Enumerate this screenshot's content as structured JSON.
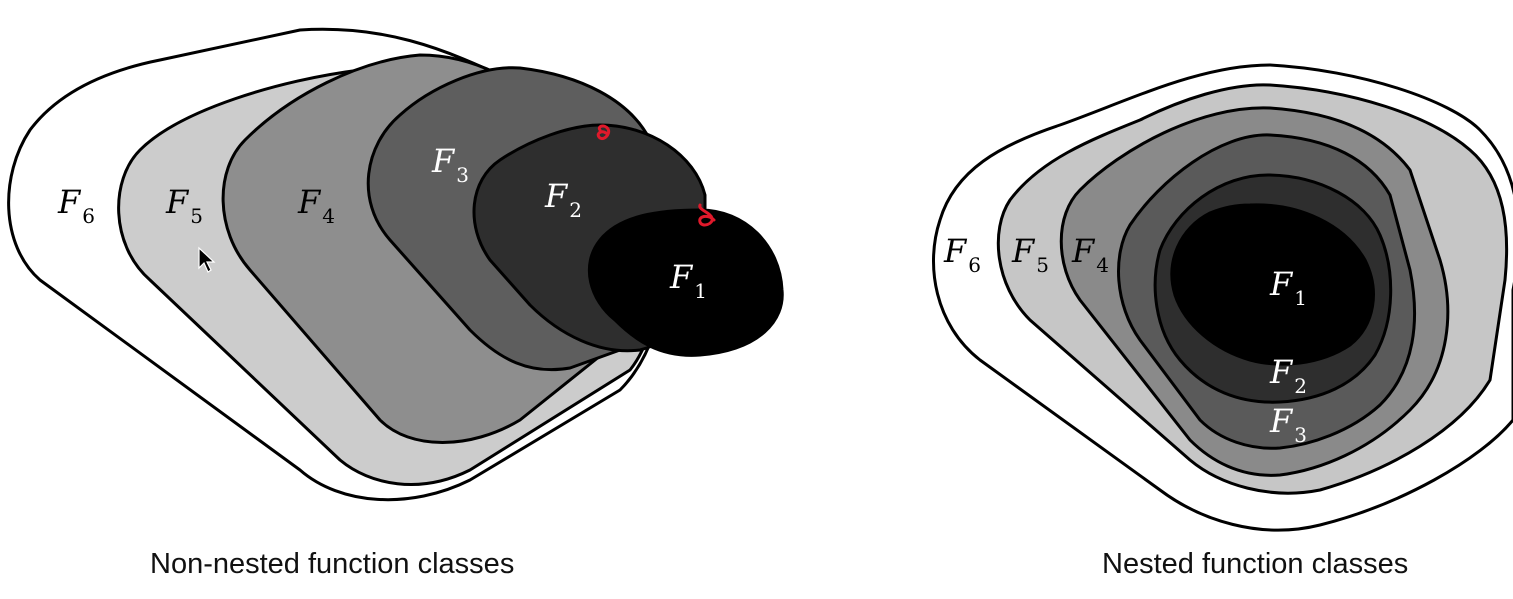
{
  "left_diagram": {
    "caption": "Non-nested function classes",
    "sets": [
      {
        "symbol": "F",
        "sub": "6",
        "fill": "#ffffff",
        "text_color": "#000000"
      },
      {
        "symbol": "F",
        "sub": "5",
        "fill": "#cccccc",
        "text_color": "#000000"
      },
      {
        "symbol": "F",
        "sub": "4",
        "fill": "#8e8e8e",
        "text_color": "#000000"
      },
      {
        "symbol": "F",
        "sub": "3",
        "fill": "#5e5e5e",
        "text_color": "#ffffff"
      },
      {
        "symbol": "F",
        "sub": "2",
        "fill": "#2e2e2e",
        "text_color": "#ffffff"
      },
      {
        "symbol": "F",
        "sub": "1",
        "fill": "#000000",
        "text_color": "#ffffff"
      }
    ]
  },
  "right_diagram": {
    "caption": "Nested function classes",
    "sets": [
      {
        "symbol": "F",
        "sub": "6",
        "fill": "#ffffff",
        "text_color": "#000000"
      },
      {
        "symbol": "F",
        "sub": "5",
        "fill": "#c6c6c6",
        "text_color": "#000000"
      },
      {
        "symbol": "F",
        "sub": "4",
        "fill": "#8a8a8a",
        "text_color": "#000000"
      },
      {
        "symbol": "F",
        "sub": "3",
        "fill": "#5a5a5a",
        "text_color": "#ffffff"
      },
      {
        "symbol": "F",
        "sub": "2",
        "fill": "#2e2e2e",
        "text_color": "#ffffff"
      },
      {
        "symbol": "F",
        "sub": "1",
        "fill": "#000000",
        "text_color": "#ffffff"
      }
    ]
  },
  "annotation_color": "#e0192b",
  "cursor_icon": "arrow-cursor-icon"
}
